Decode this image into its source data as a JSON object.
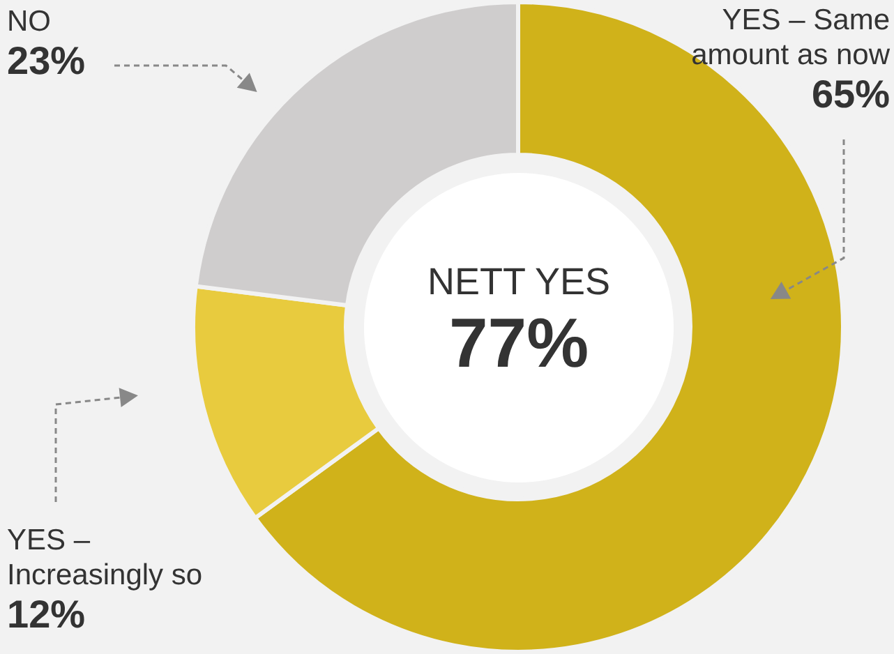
{
  "chart_data": {
    "type": "donut",
    "categories": [
      "YES – Same amount as now",
      "YES – Increasingly so",
      "NO"
    ],
    "values": [
      65,
      12,
      23
    ],
    "colors": [
      "#d0b21a",
      "#e8cb3e",
      "#cfcdcd"
    ],
    "value_labels": [
      "65%",
      "12%",
      "23%"
    ],
    "legend": false,
    "annotations": [
      "NETT YES",
      "77%"
    ]
  }
}
